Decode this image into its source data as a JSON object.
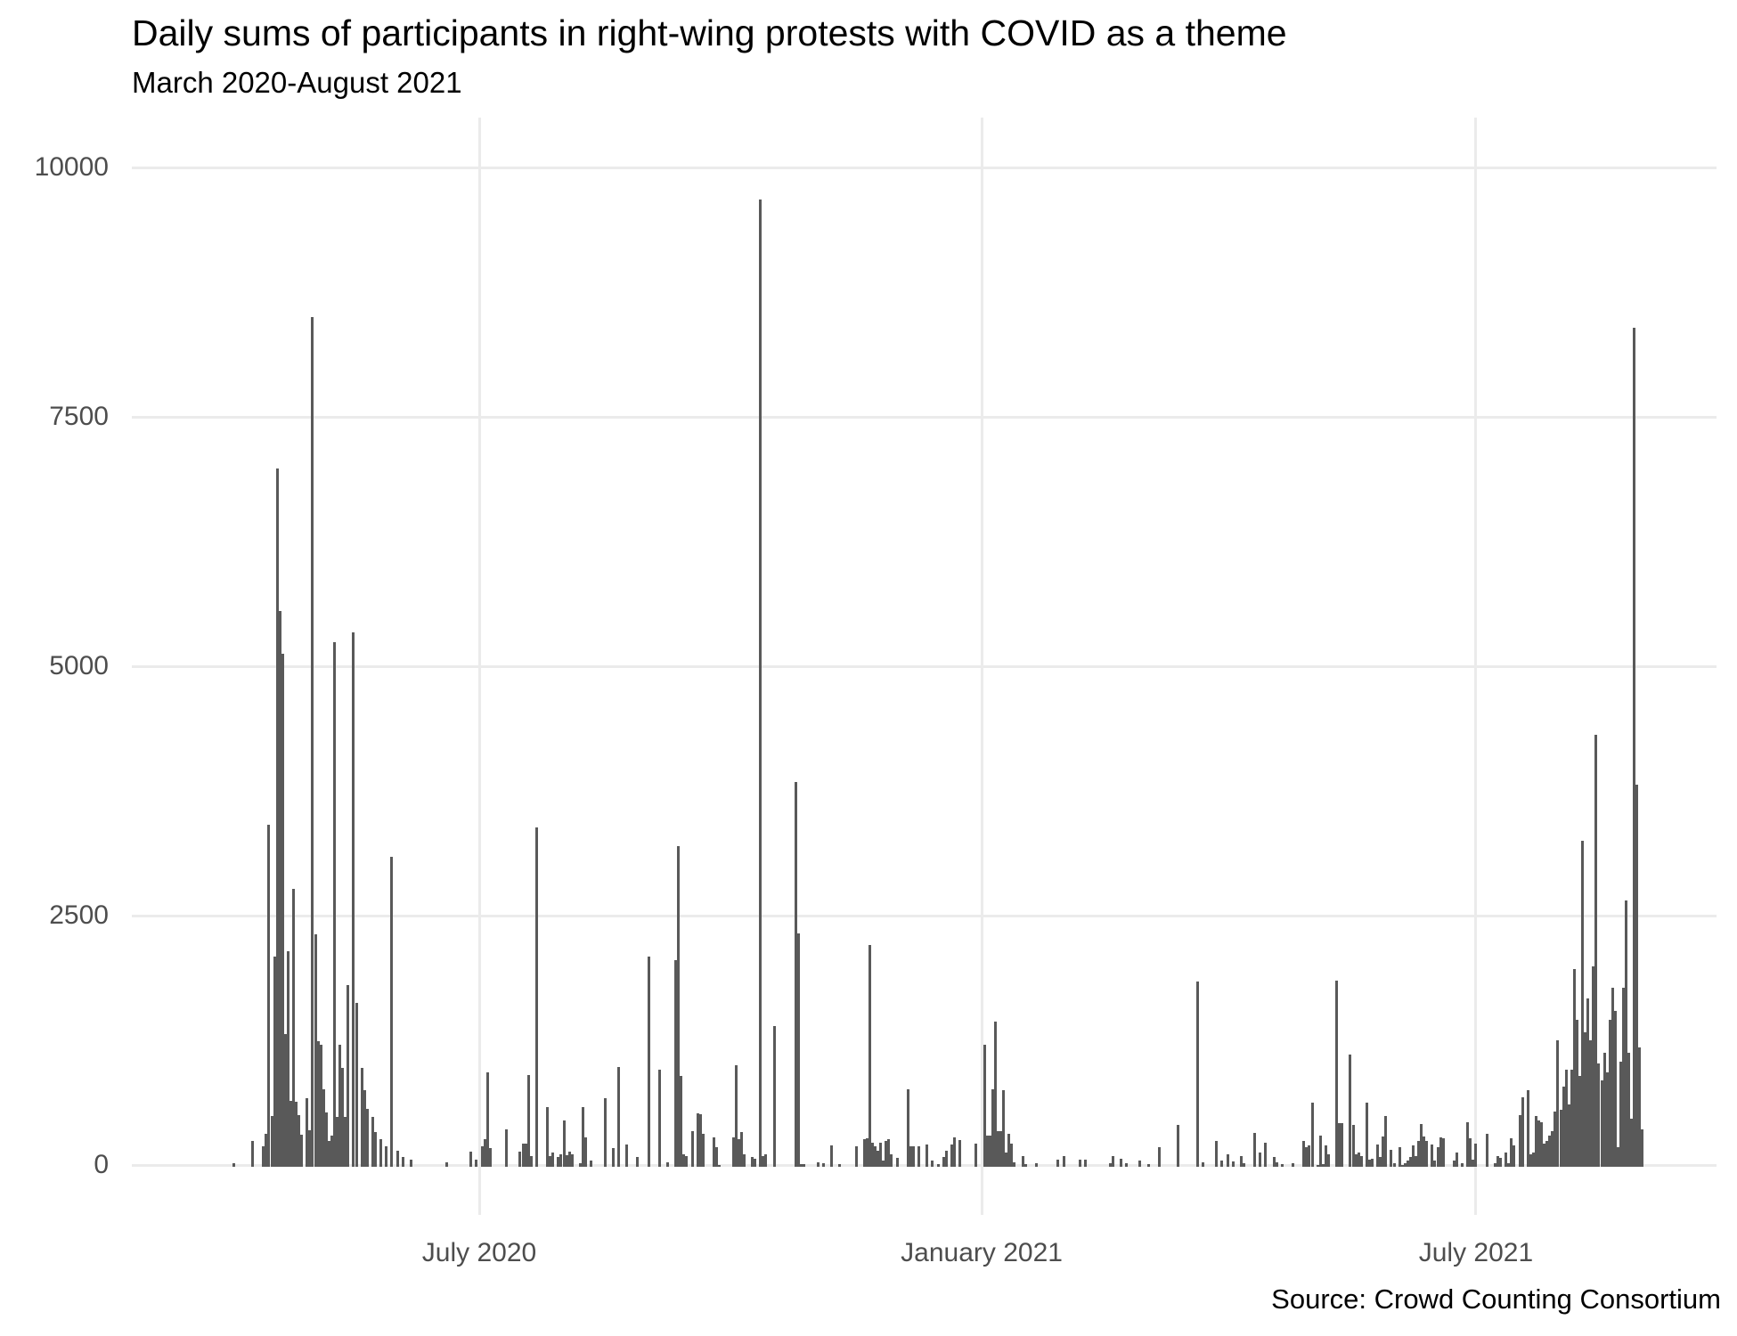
{
  "header": {
    "title": "Daily sums of participants in right-wing protests with COVID as a theme",
    "subtitle": "March 2020-August 2021"
  },
  "caption": "Source: Crowd Counting Consortium",
  "colors": {
    "bar": "#595959",
    "gridline": "#ebebeb",
    "axis_text": "#4d4d4d",
    "title_text": "#000000",
    "background": "#ffffff"
  },
  "chart_data": {
    "type": "bar",
    "title": "Daily sums of participants in right-wing protests with COVID as a theme",
    "subtitle": "March 2020-August 2021",
    "caption": "Source: Crowd Counting Consortium",
    "xlabel": "",
    "ylabel": "",
    "ylim": [
      0,
      10000
    ],
    "yticks": [
      0,
      2500,
      5000,
      7500,
      10000
    ],
    "xticks": [
      {
        "label": "July 2020",
        "date": "2020-07-01"
      },
      {
        "label": "January 2021",
        "date": "2021-01-01"
      },
      {
        "label": "July 2021",
        "date": "2021-07-01"
      }
    ],
    "x_domain": [
      "2020-03-01",
      "2021-09-05"
    ],
    "grid": "major-only",
    "legend": "none",
    "bars": [
      [
        "2020-04-02",
        25
      ],
      [
        "2020-04-09",
        250
      ],
      [
        "2020-04-13",
        200
      ],
      [
        "2020-04-14",
        325
      ],
      [
        "2020-04-15",
        3420
      ],
      [
        "2020-04-16",
        500
      ],
      [
        "2020-04-17",
        2100
      ],
      [
        "2020-04-18",
        6990
      ],
      [
        "2020-04-19",
        5565
      ],
      [
        "2020-04-20",
        5135
      ],
      [
        "2020-04-21",
        1320
      ],
      [
        "2020-04-22",
        2150
      ],
      [
        "2020-04-23",
        650
      ],
      [
        "2020-04-24",
        2780
      ],
      [
        "2020-04-25",
        640
      ],
      [
        "2020-04-26",
        505
      ],
      [
        "2020-04-27",
        310
      ],
      [
        "2020-04-29",
        680
      ],
      [
        "2020-04-30",
        360
      ],
      [
        "2020-05-01",
        8510
      ],
      [
        "2020-05-02",
        2320
      ],
      [
        "2020-05-03",
        1250
      ],
      [
        "2020-05-04",
        1215
      ],
      [
        "2020-05-05",
        770
      ],
      [
        "2020-05-06",
        535
      ],
      [
        "2020-05-07",
        250
      ],
      [
        "2020-05-08",
        300
      ],
      [
        "2020-05-09",
        5250
      ],
      [
        "2020-05-10",
        490
      ],
      [
        "2020-05-11",
        1215
      ],
      [
        "2020-05-12",
        980
      ],
      [
        "2020-05-13",
        490
      ],
      [
        "2020-05-14",
        1815
      ],
      [
        "2020-05-16",
        5345
      ],
      [
        "2020-05-17",
        1630
      ],
      [
        "2020-05-19",
        980
      ],
      [
        "2020-05-20",
        755
      ],
      [
        "2020-05-21",
        575
      ],
      [
        "2020-05-23",
        490
      ],
      [
        "2020-05-24",
        335
      ],
      [
        "2020-05-26",
        270
      ],
      [
        "2020-05-28",
        195
      ],
      [
        "2020-05-30",
        3100
      ],
      [
        "2020-06-01",
        150
      ],
      [
        "2020-06-03",
        90
      ],
      [
        "2020-06-06",
        60
      ],
      [
        "2020-06-19",
        40
      ],
      [
        "2020-06-28",
        140
      ],
      [
        "2020-06-30",
        60
      ],
      [
        "2020-07-02",
        200
      ],
      [
        "2020-07-03",
        270
      ],
      [
        "2020-07-04",
        940
      ],
      [
        "2020-07-05",
        180
      ],
      [
        "2020-07-11",
        365
      ],
      [
        "2020-07-16",
        145
      ],
      [
        "2020-07-17",
        225
      ],
      [
        "2020-07-18",
        225
      ],
      [
        "2020-07-19",
        915
      ],
      [
        "2020-07-20",
        100
      ],
      [
        "2020-07-22",
        3390
      ],
      [
        "2020-07-26",
        590
      ],
      [
        "2020-07-27",
        100
      ],
      [
        "2020-07-28",
        130
      ],
      [
        "2020-07-30",
        85
      ],
      [
        "2020-07-31",
        115
      ],
      [
        "2020-08-01",
        455
      ],
      [
        "2020-08-02",
        110
      ],
      [
        "2020-08-03",
        140
      ],
      [
        "2020-08-04",
        120
      ],
      [
        "2020-08-07",
        25
      ],
      [
        "2020-08-08",
        590
      ],
      [
        "2020-08-09",
        290
      ],
      [
        "2020-08-11",
        55
      ],
      [
        "2020-08-16",
        680
      ],
      [
        "2020-08-19",
        175
      ],
      [
        "2020-08-21",
        995
      ],
      [
        "2020-08-24",
        210
      ],
      [
        "2020-08-28",
        85
      ],
      [
        "2020-09-01",
        2095
      ],
      [
        "2020-09-05",
        965
      ],
      [
        "2020-09-08",
        40
      ],
      [
        "2020-09-11",
        2060
      ],
      [
        "2020-09-12",
        3205
      ],
      [
        "2020-09-13",
        900
      ],
      [
        "2020-09-14",
        115
      ],
      [
        "2020-09-15",
        100
      ],
      [
        "2020-09-17",
        350
      ],
      [
        "2020-09-19",
        530
      ],
      [
        "2020-09-20",
        520
      ],
      [
        "2020-09-21",
        320
      ],
      [
        "2020-09-25",
        290
      ],
      [
        "2020-09-26",
        190
      ],
      [
        "2020-09-27",
        10
      ],
      [
        "2020-10-02",
        285
      ],
      [
        "2020-10-03",
        1010
      ],
      [
        "2020-10-04",
        265
      ],
      [
        "2020-10-05",
        335
      ],
      [
        "2020-10-06",
        115
      ],
      [
        "2020-10-09",
        90
      ],
      [
        "2020-10-10",
        70
      ],
      [
        "2020-10-12",
        9690
      ],
      [
        "2020-10-13",
        100
      ],
      [
        "2020-10-14",
        115
      ],
      [
        "2020-10-17",
        1400
      ],
      [
        "2020-10-25",
        3850
      ],
      [
        "2020-10-26",
        2330
      ],
      [
        "2020-10-27",
        15
      ],
      [
        "2020-10-28",
        15
      ],
      [
        "2020-11-02",
        35
      ],
      [
        "2020-11-04",
        25
      ],
      [
        "2020-11-07",
        205
      ],
      [
        "2020-11-10",
        15
      ],
      [
        "2020-11-16",
        195
      ],
      [
        "2020-11-19",
        270
      ],
      [
        "2020-11-20",
        280
      ],
      [
        "2020-11-21",
        2215
      ],
      [
        "2020-11-22",
        230
      ],
      [
        "2020-11-23",
        195
      ],
      [
        "2020-11-24",
        150
      ],
      [
        "2020-11-25",
        230
      ],
      [
        "2020-11-26",
        55
      ],
      [
        "2020-11-27",
        250
      ],
      [
        "2020-11-28",
        265
      ],
      [
        "2020-11-29",
        120
      ],
      [
        "2020-12-01",
        80
      ],
      [
        "2020-12-05",
        765
      ],
      [
        "2020-12-06",
        200
      ],
      [
        "2020-12-07",
        200
      ],
      [
        "2020-12-09",
        195
      ],
      [
        "2020-12-12",
        210
      ],
      [
        "2020-12-14",
        55
      ],
      [
        "2020-12-16",
        20
      ],
      [
        "2020-12-18",
        85
      ],
      [
        "2020-12-19",
        155
      ],
      [
        "2020-12-21",
        210
      ],
      [
        "2020-12-22",
        290
      ],
      [
        "2020-12-24",
        260
      ],
      [
        "2020-12-30",
        225
      ],
      [
        "2021-01-02",
        1215
      ],
      [
        "2021-01-03",
        300
      ],
      [
        "2021-01-04",
        300
      ],
      [
        "2021-01-05",
        765
      ],
      [
        "2021-01-06",
        1450
      ],
      [
        "2021-01-07",
        350
      ],
      [
        "2021-01-08",
        350
      ],
      [
        "2021-01-09",
        755
      ],
      [
        "2021-01-10",
        130
      ],
      [
        "2021-01-11",
        320
      ],
      [
        "2021-01-12",
        225
      ],
      [
        "2021-01-13",
        40
      ],
      [
        "2021-01-16",
        100
      ],
      [
        "2021-01-17",
        20
      ],
      [
        "2021-01-21",
        25
      ],
      [
        "2021-01-29",
        60
      ],
      [
        "2021-01-31",
        100
      ],
      [
        "2021-02-06",
        60
      ],
      [
        "2021-02-08",
        60
      ],
      [
        "2021-02-17",
        30
      ],
      [
        "2021-02-18",
        100
      ],
      [
        "2021-02-21",
        70
      ],
      [
        "2021-02-23",
        25
      ],
      [
        "2021-02-28",
        55
      ],
      [
        "2021-03-03",
        15
      ],
      [
        "2021-03-07",
        185
      ],
      [
        "2021-03-14",
        410
      ],
      [
        "2021-03-21",
        1850
      ],
      [
        "2021-03-23",
        35
      ],
      [
        "2021-03-28",
        250
      ],
      [
        "2021-03-30",
        55
      ],
      [
        "2021-04-01",
        115
      ],
      [
        "2021-04-03",
        45
      ],
      [
        "2021-04-06",
        100
      ],
      [
        "2021-04-07",
        25
      ],
      [
        "2021-04-11",
        330
      ],
      [
        "2021-04-13",
        130
      ],
      [
        "2021-04-15",
        235
      ],
      [
        "2021-04-18",
        90
      ],
      [
        "2021-04-19",
        35
      ],
      [
        "2021-04-21",
        20
      ],
      [
        "2021-04-25",
        25
      ],
      [
        "2021-04-29",
        250
      ],
      [
        "2021-04-30",
        190
      ],
      [
        "2021-05-01",
        205
      ],
      [
        "2021-05-02",
        630
      ],
      [
        "2021-05-04",
        10
      ],
      [
        "2021-05-05",
        305
      ],
      [
        "2021-05-06",
        20
      ],
      [
        "2021-05-07",
        205
      ],
      [
        "2021-05-08",
        115
      ],
      [
        "2021-05-11",
        1860
      ],
      [
        "2021-05-12",
        430
      ],
      [
        "2021-05-13",
        430
      ],
      [
        "2021-05-16",
        1120
      ],
      [
        "2021-05-17",
        410
      ],
      [
        "2021-05-18",
        115
      ],
      [
        "2021-05-19",
        130
      ],
      [
        "2021-05-20",
        100
      ],
      [
        "2021-05-22",
        630
      ],
      [
        "2021-05-23",
        60
      ],
      [
        "2021-05-24",
        75
      ],
      [
        "2021-05-26",
        215
      ],
      [
        "2021-05-27",
        85
      ],
      [
        "2021-05-28",
        295
      ],
      [
        "2021-05-29",
        500
      ],
      [
        "2021-05-31",
        160
      ],
      [
        "2021-06-01",
        30
      ],
      [
        "2021-06-03",
        190
      ],
      [
        "2021-06-04",
        10
      ],
      [
        "2021-06-05",
        25
      ],
      [
        "2021-06-06",
        55
      ],
      [
        "2021-06-07",
        85
      ],
      [
        "2021-06-08",
        205
      ],
      [
        "2021-06-09",
        100
      ],
      [
        "2021-06-10",
        250
      ],
      [
        "2021-06-11",
        420
      ],
      [
        "2021-06-12",
        295
      ],
      [
        "2021-06-13",
        250
      ],
      [
        "2021-06-15",
        215
      ],
      [
        "2021-06-16",
        55
      ],
      [
        "2021-06-17",
        190
      ],
      [
        "2021-06-18",
        285
      ],
      [
        "2021-06-19",
        280
      ],
      [
        "2021-06-23",
        55
      ],
      [
        "2021-06-24",
        130
      ],
      [
        "2021-06-26",
        25
      ],
      [
        "2021-06-28",
        440
      ],
      [
        "2021-06-29",
        280
      ],
      [
        "2021-06-30",
        60
      ],
      [
        "2021-07-01",
        220
      ],
      [
        "2021-07-05",
        320
      ],
      [
        "2021-07-08",
        30
      ],
      [
        "2021-07-09",
        100
      ],
      [
        "2021-07-10",
        80
      ],
      [
        "2021-07-12",
        130
      ],
      [
        "2021-07-13",
        30
      ],
      [
        "2021-07-14",
        280
      ],
      [
        "2021-07-15",
        205
      ],
      [
        "2021-07-17",
        510
      ],
      [
        "2021-07-18",
        685
      ],
      [
        "2021-07-20",
        755
      ],
      [
        "2021-07-21",
        115
      ],
      [
        "2021-07-22",
        130
      ],
      [
        "2021-07-23",
        500
      ],
      [
        "2021-07-24",
        455
      ],
      [
        "2021-07-25",
        440
      ],
      [
        "2021-07-26",
        220
      ],
      [
        "2021-07-27",
        250
      ],
      [
        "2021-07-28",
        305
      ],
      [
        "2021-07-29",
        350
      ],
      [
        "2021-07-30",
        545
      ],
      [
        "2021-07-31",
        1255
      ],
      [
        "2021-08-01",
        560
      ],
      [
        "2021-08-02",
        795
      ],
      [
        "2021-08-03",
        960
      ],
      [
        "2021-08-04",
        620
      ],
      [
        "2021-08-05",
        965
      ],
      [
        "2021-08-06",
        1970
      ],
      [
        "2021-08-07",
        1465
      ],
      [
        "2021-08-08",
        905
      ],
      [
        "2021-08-09",
        3255
      ],
      [
        "2021-08-10",
        1340
      ],
      [
        "2021-08-11",
        1680
      ],
      [
        "2021-08-12",
        1255
      ],
      [
        "2021-08-13",
        2000
      ],
      [
        "2021-08-14",
        4320
      ],
      [
        "2021-08-15",
        1030
      ],
      [
        "2021-08-16",
        855
      ],
      [
        "2021-08-17",
        1135
      ],
      [
        "2021-08-18",
        940
      ],
      [
        "2021-08-19",
        1460
      ],
      [
        "2021-08-20",
        1790
      ],
      [
        "2021-08-21",
        1550
      ],
      [
        "2021-08-22",
        190
      ],
      [
        "2021-08-23",
        1045
      ],
      [
        "2021-08-24",
        1790
      ],
      [
        "2021-08-25",
        2660
      ],
      [
        "2021-08-26",
        1135
      ],
      [
        "2021-08-27",
        470
      ],
      [
        "2021-08-28",
        8400
      ],
      [
        "2021-08-29",
        3820
      ],
      [
        "2021-08-30",
        1190
      ],
      [
        "2021-08-31",
        365
      ]
    ]
  }
}
